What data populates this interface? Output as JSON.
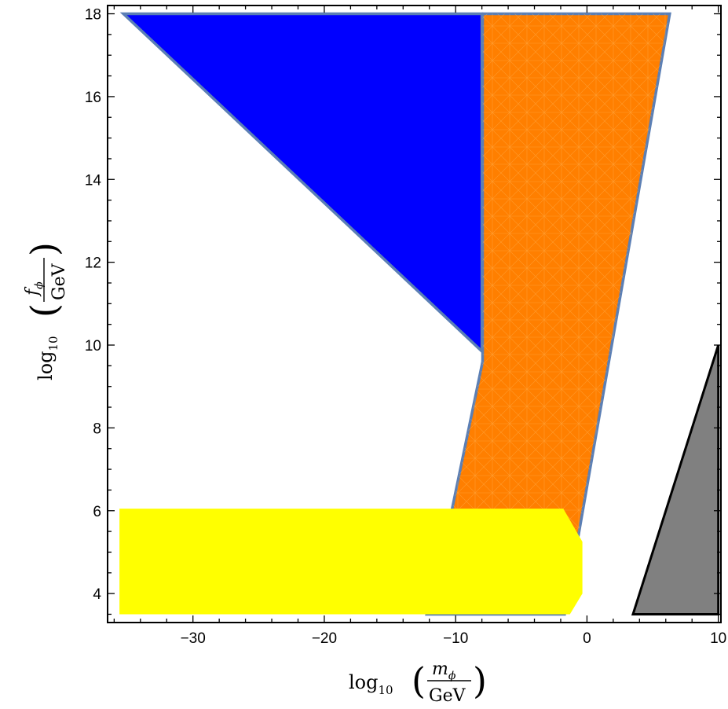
{
  "chart_data": {
    "type": "area",
    "title": "",
    "xlabel": {
      "prefix": "log",
      "sub": "10",
      "numerator": "m",
      "numerator_sub": "ϕ",
      "denominator": "GeV"
    },
    "ylabel": {
      "prefix": "log",
      "sub": "10",
      "numerator": "f",
      "numerator_sub": "ϕ",
      "denominator": "GeV"
    },
    "xlim": [
      -36.5,
      10.2
    ],
    "ylim": [
      3.3,
      18.2
    ],
    "xticks": [
      -30,
      -20,
      -10,
      0,
      10
    ],
    "yticks": [
      4,
      6,
      8,
      10,
      12,
      14,
      16,
      18
    ],
    "grid": false,
    "frame_ticks": true,
    "regions": [
      {
        "id": "blue",
        "color": "#0000ff",
        "edge": "#5b7fb5",
        "points": [
          [
            -35.3,
            18.0
          ],
          [
            -8.0,
            18.0
          ],
          [
            -8.0,
            9.85
          ]
        ]
      },
      {
        "id": "orange",
        "color": "#ff7f00",
        "edge": "#5b7fb5",
        "points": [
          [
            -8.0,
            18.0
          ],
          [
            6.3,
            18.0
          ],
          [
            -1.7,
            3.5
          ],
          [
            -12.2,
            3.5
          ],
          [
            -10.3,
            6.0
          ],
          [
            -7.95,
            9.6
          ],
          [
            -7.95,
            18.0
          ]
        ]
      },
      {
        "id": "yellow",
        "color": "#ffff00",
        "edge": "none",
        "points": [
          [
            -35.6,
            3.5
          ],
          [
            -35.6,
            6.05
          ],
          [
            -1.8,
            6.05
          ],
          [
            -0.35,
            5.25
          ],
          [
            -0.35,
            4.0
          ],
          [
            -1.3,
            3.5
          ]
        ]
      },
      {
        "id": "gray",
        "color": "#808080",
        "edge": "#000000",
        "points": [
          [
            3.5,
            3.5
          ],
          [
            10.0,
            10.0
          ],
          [
            10.0,
            3.5
          ]
        ]
      }
    ]
  }
}
